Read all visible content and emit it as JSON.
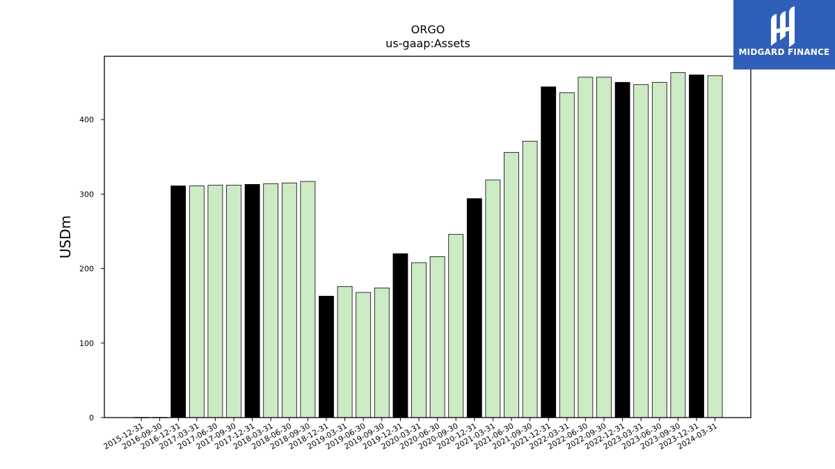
{
  "logo": {
    "text": "MIDGARD FINANCE",
    "icon": "midgard-logo-icon",
    "bg_color": "#2f5fb8"
  },
  "colors": {
    "annual": "#000000",
    "quarterly": "#cceac4"
  },
  "chart_data": {
    "type": "bar",
    "title": "ORGO",
    "subtitle": "us-gaap:Assets",
    "ylabel": "USDm",
    "ylim": [
      0,
      485
    ],
    "yticks": [
      0,
      100,
      200,
      300,
      400
    ],
    "categories": [
      "2015-12-31",
      "2016-09-30",
      "2016-12-31",
      "2017-03-31",
      "2017-06-30",
      "2017-09-30",
      "2017-12-31",
      "2018-03-31",
      "2018-06-30",
      "2018-09-30",
      "2018-12-31",
      "2019-03-31",
      "2019-06-30",
      "2019-09-30",
      "2019-12-31",
      "2020-03-31",
      "2020-06-30",
      "2020-09-30",
      "2020-12-31",
      "2021-03-31",
      "2021-06-30",
      "2021-09-30",
      "2021-12-31",
      "2022-03-31",
      "2022-06-30",
      "2022-09-30",
      "2022-12-31",
      "2023-03-31",
      "2023-06-30",
      "2023-09-30",
      "2023-12-31",
      "2024-03-31"
    ],
    "values": [
      0.3,
      0.3,
      311,
      311,
      312,
      312,
      313,
      314,
      315,
      317,
      163,
      176,
      168,
      174,
      220,
      208,
      216,
      246,
      294,
      319,
      356,
      371,
      444,
      436,
      457,
      457,
      450,
      447,
      450,
      463,
      460,
      459
    ],
    "annual": [
      true,
      false,
      true,
      false,
      false,
      false,
      true,
      false,
      false,
      false,
      true,
      false,
      false,
      false,
      true,
      false,
      false,
      false,
      true,
      false,
      false,
      false,
      true,
      false,
      false,
      false,
      true,
      false,
      false,
      false,
      true,
      false
    ]
  }
}
